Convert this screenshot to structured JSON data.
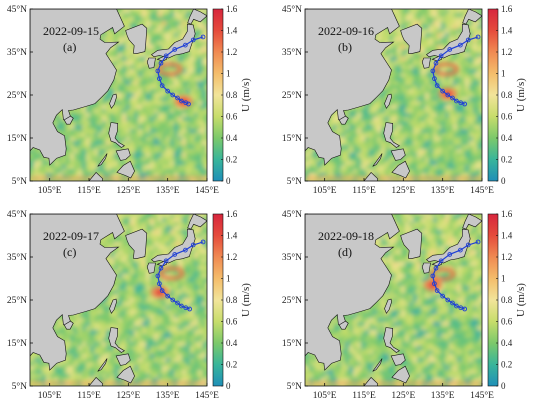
{
  "panels": [
    {
      "date": "2022-09-15",
      "letter": "(a)",
      "track": [
        [
          144.0,
          38.5
        ],
        [
          141.5,
          37.8
        ],
        [
          139.5,
          36.6
        ],
        [
          136.8,
          35.6
        ],
        [
          134.6,
          34.1
        ],
        [
          133.3,
          32.4
        ],
        [
          132.5,
          30.6
        ],
        [
          132.9,
          28.8
        ],
        [
          133.6,
          27.2
        ],
        [
          135.0,
          25.9
        ],
        [
          136.3,
          25.0
        ],
        [
          137.5,
          24.3
        ],
        [
          138.5,
          23.6
        ],
        [
          139.6,
          23.2
        ],
        [
          140.3,
          22.9
        ]
      ],
      "hotspot": [
        139.0,
        23.5
      ],
      "eddy": [
        135.5,
        31.0
      ]
    },
    {
      "date": "2022-09-16",
      "letter": "(b)",
      "track": [
        [
          144.0,
          38.5
        ],
        [
          141.5,
          37.8
        ],
        [
          139.5,
          36.6
        ],
        [
          136.8,
          35.6
        ],
        [
          134.6,
          34.1
        ],
        [
          133.3,
          32.4
        ],
        [
          132.5,
          30.6
        ],
        [
          132.9,
          28.8
        ],
        [
          133.6,
          27.2
        ],
        [
          135.0,
          25.9
        ],
        [
          136.3,
          25.0
        ],
        [
          137.5,
          24.3
        ],
        [
          138.5,
          23.6
        ],
        [
          139.6,
          23.2
        ],
        [
          140.6,
          22.9
        ]
      ],
      "hotspot": [
        136.3,
        25.3
      ],
      "eddy": [
        135.8,
        31.0
      ]
    },
    {
      "date": "2022-09-17",
      "letter": "(c)",
      "track": [
        [
          144.0,
          38.5
        ],
        [
          141.5,
          37.8
        ],
        [
          139.5,
          36.6
        ],
        [
          136.8,
          35.6
        ],
        [
          134.6,
          34.1
        ],
        [
          133.3,
          32.4
        ],
        [
          132.5,
          30.6
        ],
        [
          132.9,
          28.8
        ],
        [
          133.6,
          27.2
        ],
        [
          135.0,
          25.9
        ],
        [
          136.3,
          25.0
        ],
        [
          137.5,
          24.3
        ],
        [
          138.5,
          23.6
        ],
        [
          139.6,
          23.2
        ],
        [
          140.6,
          22.9
        ]
      ],
      "hotspot": [
        133.0,
        26.8
      ],
      "eddy": [
        136.0,
        31.2
      ]
    },
    {
      "date": "2022-09-18",
      "letter": "(d)",
      "track": [
        [
          144.0,
          38.5
        ],
        [
          141.5,
          37.8
        ],
        [
          139.5,
          36.6
        ],
        [
          136.8,
          35.6
        ],
        [
          134.6,
          34.1
        ],
        [
          133.3,
          32.4
        ],
        [
          132.5,
          30.6
        ],
        [
          132.9,
          28.8
        ],
        [
          133.6,
          27.2
        ],
        [
          135.0,
          25.9
        ],
        [
          136.3,
          25.0
        ],
        [
          137.5,
          24.3
        ],
        [
          138.5,
          23.6
        ],
        [
          139.6,
          23.2
        ],
        [
          140.6,
          22.9
        ]
      ],
      "hotspot": [
        132.5,
        28.5
      ],
      "eddy": [
        135.0,
        31.0
      ]
    }
  ],
  "axes": {
    "lon_ticks": [
      "105°E",
      "115°E",
      "125°E",
      "135°E",
      "145°E"
    ],
    "lon_values": [
      105,
      115,
      125,
      135,
      145
    ],
    "lat_ticks": [
      "5°N",
      "15°N",
      "25°N",
      "35°N",
      "45°N"
    ],
    "lat_values": [
      5,
      15,
      25,
      35,
      45
    ],
    "lon_range": [
      100,
      145
    ],
    "lat_range": [
      5,
      45
    ]
  },
  "colorbar": {
    "ticks": [
      "0",
      "0.2",
      "0.4",
      "0.6",
      "0.8",
      "1",
      "1.2",
      "1.4",
      "1.6"
    ],
    "range": [
      0,
      1.6
    ],
    "unit": "U (m/s)",
    "colors": [
      "#1f8fb8",
      "#39b59a",
      "#7cc96b",
      "#c7dd6b",
      "#f2e49a",
      "#f4bd6b",
      "#f08a52",
      "#e54b3c",
      "#d7263d"
    ]
  },
  "land_color": "#c8c8c8",
  "track_color": "#1f3fd6"
}
